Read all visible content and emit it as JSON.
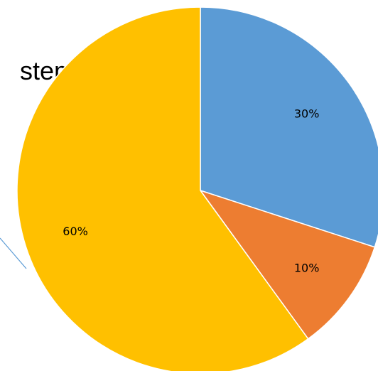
{
  "background_text": "stem",
  "chart_data": {
    "type": "pie",
    "start_angle_deg": 0,
    "direction": "clockwise",
    "slices": [
      {
        "value": 30,
        "label": "30%",
        "color": "#5B9BD5"
      },
      {
        "value": 10,
        "label": "10%",
        "color": "#ED7D31"
      },
      {
        "value": 60,
        "label": "60%",
        "color": "#FFC000"
      }
    ]
  },
  "accent_line_color": "#5B9BD5"
}
